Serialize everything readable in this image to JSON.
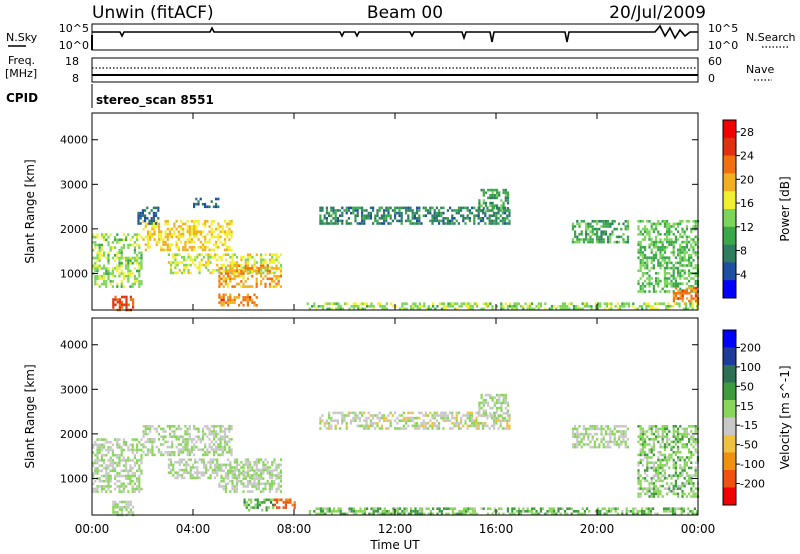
{
  "header": {
    "station": "Unwin (fitACF)",
    "beam": "Beam 00",
    "date": "20/Jul/2009"
  },
  "strip_panels": {
    "nsky_label": "N.Sky",
    "nsearch_label": "N.Search",
    "nsky_ticks": [
      "10^5",
      "10^0"
    ],
    "nsearch_ticks": [
      "10^5",
      "10^0"
    ],
    "freq_label": "Freq.",
    "freq_unit": "[MHz]",
    "freq_ticks": [
      "18",
      "8"
    ],
    "nave_label": "Nave",
    "nave_ticks": [
      "60",
      "0"
    ],
    "cpid_label": "CPID",
    "cpid_value": "stereo_scan 8551"
  },
  "colors": {
    "power": [
      "#0000ff",
      "#1f4fa0",
      "#2e7d60",
      "#3aa84a",
      "#7cd45a",
      "#f0f030",
      "#f0b020",
      "#f07010",
      "#e03010",
      "#f00000"
    ],
    "velocity": [
      "#0000ff",
      "#1f3c9a",
      "#2e6f55",
      "#3e9c3e",
      "#8ad65c",
      "#c8c8c8",
      "#f0c040",
      "#f09010",
      "#f05010",
      "#f00000"
    ]
  },
  "chart_data": [
    {
      "type": "heatmap",
      "title": "",
      "xlabel": "Time UT",
      "ylabel": "Slant Range [km]",
      "x_ticks": [
        "00:00",
        "04:00",
        "08:00",
        "12:00",
        "16:00",
        "20:00",
        "00:00"
      ],
      "xlim": [
        0,
        24
      ],
      "ylim": [
        180,
        4600
      ],
      "y_ticks": [
        1000,
        2000,
        3000,
        4000
      ],
      "colorbar": {
        "label": "Power [dB]",
        "ticks": [
          4,
          8,
          12,
          16,
          20,
          24,
          28
        ],
        "range": [
          0,
          30
        ]
      },
      "regions": [
        {
          "x": [
            0.0,
            2.0
          ],
          "y": [
            700,
            1900
          ],
          "value": 14
        },
        {
          "x": [
            2.0,
            5.5
          ],
          "y": [
            1500,
            2200
          ],
          "value": 18
        },
        {
          "x": [
            3.0,
            7.5
          ],
          "y": [
            1000,
            1450
          ],
          "value": 16
        },
        {
          "x": [
            5.0,
            7.5
          ],
          "y": [
            700,
            1200
          ],
          "value": 20
        },
        {
          "x": [
            5.0,
            6.5
          ],
          "y": [
            300,
            550
          ],
          "value": 22
        },
        {
          "x": [
            0.8,
            1.6
          ],
          "y": [
            200,
            500
          ],
          "value": 24
        },
        {
          "x": [
            9.0,
            16.5
          ],
          "y": [
            2100,
            2500
          ],
          "value": 8
        },
        {
          "x": [
            15.3,
            16.5
          ],
          "y": [
            2400,
            2900
          ],
          "value": 10
        },
        {
          "x": [
            19.0,
            21.2
          ],
          "y": [
            1700,
            2200
          ],
          "value": 10
        },
        {
          "x": [
            21.6,
            24.0
          ],
          "y": [
            600,
            2200
          ],
          "value": 12
        },
        {
          "x": [
            23.0,
            24.0
          ],
          "y": [
            300,
            700
          ],
          "value": 22
        },
        {
          "x": [
            1.8,
            2.6
          ],
          "y": [
            2100,
            2500
          ],
          "value": 6
        },
        {
          "x": [
            4.0,
            5.0
          ],
          "y": [
            2500,
            2700
          ],
          "value": 6
        },
        {
          "x": [
            8.5,
            24.0
          ],
          "y": [
            200,
            350
          ],
          "value": 14
        }
      ]
    },
    {
      "type": "heatmap",
      "title": "",
      "xlabel": "Time UT",
      "ylabel": "Slant Range [km]",
      "x_ticks": [
        "00:00",
        "04:00",
        "08:00",
        "12:00",
        "16:00",
        "20:00",
        "00:00"
      ],
      "xlim": [
        0,
        24
      ],
      "ylim": [
        180,
        4600
      ],
      "y_ticks": [
        1000,
        2000,
        3000,
        4000
      ],
      "colorbar": {
        "label": "Velocity [m s^-1]",
        "ticks": [
          200,
          100,
          50,
          15,
          -15,
          -50,
          -100,
          -200
        ],
        "range": [
          -250,
          250
        ]
      },
      "regions": [
        {
          "x": [
            0.0,
            2.0
          ],
          "y": [
            700,
            1900
          ],
          "value": 0
        },
        {
          "x": [
            2.0,
            5.5
          ],
          "y": [
            1500,
            2200
          ],
          "value": 0
        },
        {
          "x": [
            3.0,
            7.5
          ],
          "y": [
            1000,
            1450
          ],
          "value": 0
        },
        {
          "x": [
            5.0,
            7.5
          ],
          "y": [
            700,
            1200
          ],
          "value": 0
        },
        {
          "x": [
            6.0,
            7.2
          ],
          "y": [
            300,
            550
          ],
          "value": 60
        },
        {
          "x": [
            7.2,
            8.0
          ],
          "y": [
            350,
            550
          ],
          "value": -150
        },
        {
          "x": [
            0.8,
            1.6
          ],
          "y": [
            200,
            500
          ],
          "value": 0
        },
        {
          "x": [
            9.0,
            16.5
          ],
          "y": [
            2100,
            2500
          ],
          "value": -20
        },
        {
          "x": [
            15.3,
            16.5
          ],
          "y": [
            2400,
            2900
          ],
          "value": 0
        },
        {
          "x": [
            19.0,
            21.2
          ],
          "y": [
            1700,
            2200
          ],
          "value": 0
        },
        {
          "x": [
            21.6,
            24.0
          ],
          "y": [
            600,
            2200
          ],
          "value": 30
        },
        {
          "x": [
            8.5,
            24.0
          ],
          "y": [
            200,
            350
          ],
          "value": 40
        }
      ]
    }
  ]
}
